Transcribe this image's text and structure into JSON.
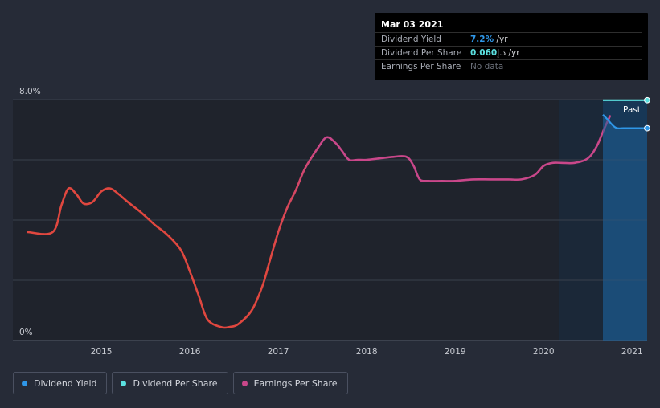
{
  "tooltip": {
    "date": "Mar 03 2021",
    "rows": [
      {
        "label": "Dividend Yield",
        "value": "7.2%",
        "unit": " /yr",
        "color": "#2f97e8"
      },
      {
        "label": "Dividend Per Share",
        "value": "0.060",
        "unit": "د.إ /yr",
        "color": "#5be0e0"
      },
      {
        "label": "Earnings Per Share",
        "value": "No data",
        "unit": "",
        "color": "#6b707a"
      }
    ]
  },
  "legend": [
    {
      "label": "Dividend Yield",
      "color": "#2f97e8"
    },
    {
      "label": "Dividend Per Share",
      "color": "#5be0e0"
    },
    {
      "label": "Earnings Per Share",
      "color": "#c9478a"
    }
  ],
  "past_label": "Past",
  "chart_data": {
    "type": "line",
    "ylim": [
      0,
      8
    ],
    "yticks": [
      {
        "value": 0,
        "label": "0%"
      },
      {
        "value": 8,
        "label": "8.0%"
      }
    ],
    "xlim": [
      2014.0,
      2021.17
    ],
    "xticks": [
      {
        "value": 2015,
        "label": "2015"
      },
      {
        "value": 2016,
        "label": "2016"
      },
      {
        "value": 2017,
        "label": "2017"
      },
      {
        "value": 2018,
        "label": "2018"
      },
      {
        "value": 2019,
        "label": "2019"
      },
      {
        "value": 2020,
        "label": "2020"
      },
      {
        "value": 2021,
        "label": "2021"
      }
    ],
    "series": [
      {
        "name": "Earnings Per Share",
        "color": "#c9478a",
        "x": [
          2014.17,
          2014.45,
          2014.55,
          2014.63,
          2014.72,
          2014.8,
          2014.9,
          2015.0,
          2015.1,
          2015.2,
          2015.3,
          2015.45,
          2015.6,
          2015.75,
          2015.9,
          2016.0,
          2016.1,
          2016.2,
          2016.35,
          2016.45,
          2016.55,
          2016.7,
          2016.82,
          2016.9,
          2017.0,
          2017.1,
          2017.2,
          2017.3,
          2017.45,
          2017.55,
          2017.65,
          2017.72,
          2017.8,
          2017.9,
          2018.0,
          2018.15,
          2018.3,
          2018.45,
          2018.53,
          2018.6,
          2018.7,
          2018.85,
          2019.0,
          2019.2,
          2019.4,
          2019.6,
          2019.75,
          2019.9,
          2020.0,
          2020.1,
          2020.2,
          2020.35,
          2020.5,
          2020.6,
          2020.68,
          2020.75
        ],
        "y": [
          3.6,
          3.6,
          4.5,
          5.05,
          4.85,
          4.55,
          4.6,
          4.95,
          5.05,
          4.85,
          4.6,
          4.25,
          3.85,
          3.5,
          3.0,
          2.3,
          1.5,
          0.7,
          0.45,
          0.45,
          0.55,
          1.0,
          1.8,
          2.6,
          3.6,
          4.4,
          5.0,
          5.7,
          6.4,
          6.75,
          6.55,
          6.3,
          6.0,
          6.0,
          6.0,
          6.05,
          6.1,
          6.1,
          5.8,
          5.35,
          5.3,
          5.3,
          5.3,
          5.35,
          5.35,
          5.35,
          5.35,
          5.5,
          5.8,
          5.9,
          5.9,
          5.9,
          6.05,
          6.45,
          7.0,
          7.45
        ]
      },
      {
        "name": "Dividend Yield",
        "color": "#2f97e8",
        "x": [
          2020.67,
          2020.72,
          2020.78,
          2020.83,
          2020.9,
          2021.0,
          2021.1,
          2021.17
        ],
        "y": [
          7.5,
          7.35,
          7.15,
          7.05,
          7.05,
          7.05,
          7.05,
          7.05
        ]
      },
      {
        "name": "Dividend Per Share",
        "color": "#5be0e0",
        "x": [
          2020.67,
          2020.8,
          2021.0,
          2021.17
        ],
        "y": [
          7.98,
          7.98,
          7.98,
          7.98
        ]
      }
    ]
  }
}
